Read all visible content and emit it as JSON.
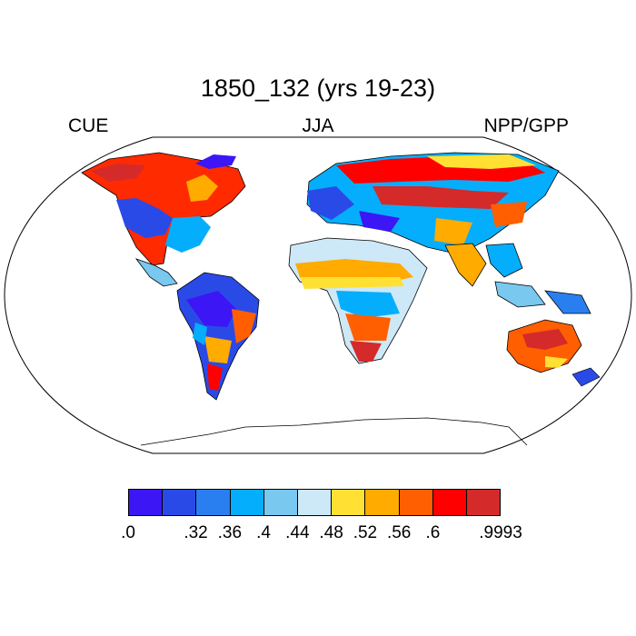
{
  "title": "1850_132 (yrs 19-23)",
  "left_label": "CUE",
  "center_label": "JJA",
  "right_label": "NPP/GPP",
  "colorbar": {
    "colors": [
      "#3c16f5",
      "#2a4ae8",
      "#2a7ff0",
      "#05aefc",
      "#78c8f0",
      "#cde8f7",
      "#ffe033",
      "#ffab00",
      "#ff5f00",
      "#ff0000",
      "#d42a2a"
    ],
    "labels": [
      ".0",
      ".32",
      ".36",
      ".4",
      ".44",
      ".48",
      ".52",
      ".56",
      ".6",
      ".9993"
    ],
    "label_boundaries": [
      0,
      2,
      3,
      4,
      5,
      6,
      7,
      8,
      9,
      11
    ]
  }
}
